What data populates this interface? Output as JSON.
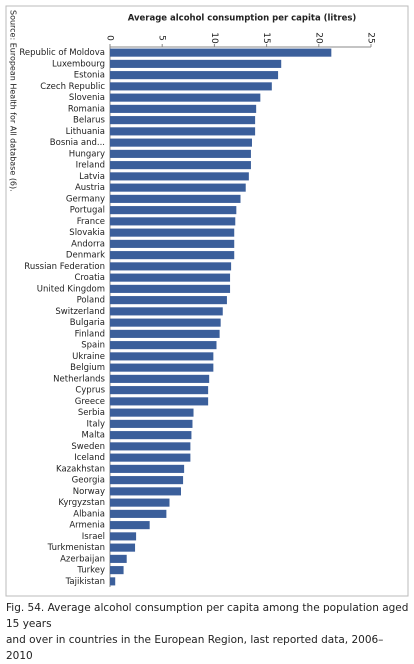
{
  "chart_data": {
    "type": "barh",
    "title": "Average alcohol consumption per capita (litres)",
    "source": "Source: European Health for All database (6).",
    "caption": [
      "Fig. 54. Average alcohol consumption per capita among the population aged 15 years",
      "and over in countries in the European Region, last reported data, 2006–2010"
    ],
    "categories": [
      "Republic of Moldova",
      "Luxembourg",
      "Estonia",
      "Czech Republic",
      "Slovenia",
      "Romania",
      "Belarus",
      "Lithuania",
      "Bosnia and...",
      "Hungary",
      "Ireland",
      "Latvia",
      "Austria",
      "Germany",
      "Portugal",
      "France",
      "Slovakia",
      "Andorra",
      "Denmark",
      "Russian Federation",
      "Croatia",
      "United Kingdom",
      "Poland",
      "Switzerland",
      "Bulgaria",
      "Finland",
      "Spain",
      "Ukraine",
      "Belgium",
      "Netherlands",
      "Cyprus",
      "Greece",
      "Serbia",
      "Italy",
      "Malta",
      "Sweden",
      "Iceland",
      "Kazakhstan",
      "Georgia",
      "Norway",
      "Kyrgyzstan",
      "Albania",
      "Armenia",
      "Israel",
      "Turkmenistan",
      "Azerbaijan",
      "Turkey",
      "Tajikistan"
    ],
    "values": [
      21.2,
      16.4,
      16.1,
      15.5,
      14.4,
      14.0,
      13.9,
      13.9,
      13.6,
      13.5,
      13.5,
      13.3,
      13.0,
      12.5,
      12.1,
      12.0,
      11.9,
      11.9,
      11.9,
      11.6,
      11.5,
      11.5,
      11.2,
      10.8,
      10.6,
      10.5,
      10.2,
      9.9,
      9.9,
      9.5,
      9.4,
      9.4,
      8.0,
      7.9,
      7.8,
      7.7,
      7.7,
      7.1,
      7.0,
      6.8,
      5.7,
      5.4,
      3.8,
      2.5,
      2.4,
      1.6,
      1.3,
      0.5
    ],
    "color": "#3b5f9b",
    "xlim": [
      0,
      25
    ],
    "xticks": [
      0,
      5,
      10,
      15,
      20,
      25
    ]
  }
}
